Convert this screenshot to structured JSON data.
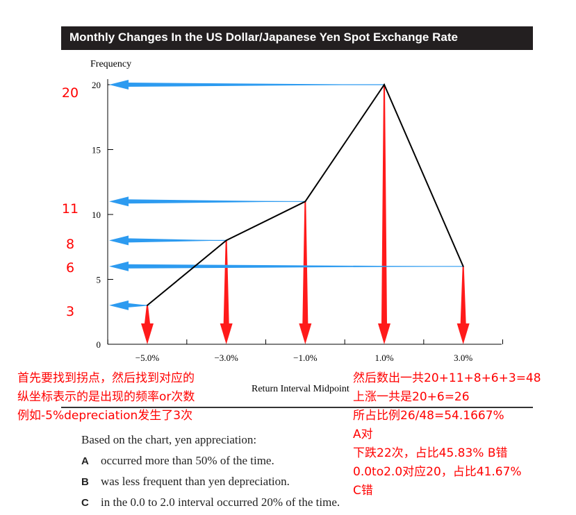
{
  "chart_data": {
    "type": "line",
    "title": "Monthly Changes In the US Dollar/Japanese Yen Spot Exchange Rate",
    "ylabel": "Frequency",
    "xlabel": "Return Interval Midpoint",
    "x_tick_labels": [
      "−5.0%",
      "−3.0%",
      "−1.0%",
      "1.0%",
      "3.0%"
    ],
    "y_tick_labels": [
      "0",
      "5",
      "10",
      "15",
      "20"
    ],
    "x": [
      -5,
      -3,
      -1,
      1,
      3
    ],
    "values": [
      3,
      8,
      11,
      20,
      6
    ],
    "xlim": [
      -6,
      4
    ],
    "ylim": [
      0,
      20
    ],
    "grid": false,
    "line_color": "#000000"
  },
  "annotations": {
    "value_labels": [
      "20",
      "11",
      "8",
      "6",
      "3"
    ],
    "arrow_color_horizontal": "#2d9bf0",
    "arrow_color_vertical": "#ff1a1a",
    "text_color": "#ff0000",
    "left_notes": [
      "首先要找到拐点，然后找到对应的",
      "纵坐标表示的是出现的频率or次数",
      "例如-5%depreciation发生了3次"
    ],
    "right_notes": [
      "然后数出一共20+11+8+6+3=48",
      "上涨一共是20+6=26",
      "所占比例26/48=54.1667%",
      "A对",
      "下跌22次，占比45.83% B错",
      "0.0to2.0对应20，占比41.67%",
      "C错"
    ]
  },
  "question": {
    "stem": "Based on the chart, yen appreciation:",
    "options": [
      {
        "letter": "A",
        "text": "occurred more than 50% of the time."
      },
      {
        "letter": "B",
        "text": "was less frequent than yen depreciation."
      },
      {
        "letter": "C",
        "text": "in the 0.0 to 2.0 interval occurred 20% of the time."
      }
    ]
  }
}
